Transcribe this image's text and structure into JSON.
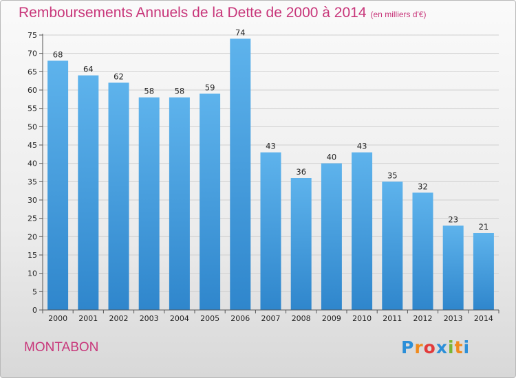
{
  "header": {
    "title": "Remboursements Annuels de la Dette de 2000 à 2014",
    "unit": "(en milliers d'€)"
  },
  "footer": {
    "city": "MONTABON",
    "logo": "Proxiti"
  },
  "colors": {
    "title": "#c8367a",
    "bar_top": "#5eb3ec",
    "bar_bottom": "#2f86cc",
    "grid": "#cfcfcf",
    "logo_letters": [
      "#2b8fd8",
      "#f08a1c",
      "#e23b3b",
      "#2b8fd8",
      "#7ab534",
      "#f08a1c",
      "#2b8fd8"
    ]
  },
  "chart_data": {
    "type": "bar",
    "title": "Remboursements Annuels de la Dette de 2000 à 2014",
    "subtitle": "(en milliers d'€)",
    "xlabel": "",
    "ylabel": "",
    "categories": [
      "2000",
      "2001",
      "2002",
      "2003",
      "2004",
      "2005",
      "2006",
      "2007",
      "2008",
      "2009",
      "2010",
      "2011",
      "2012",
      "2013",
      "2014"
    ],
    "values": [
      68,
      64,
      62,
      58,
      58,
      59,
      74,
      43,
      36,
      40,
      43,
      35,
      32,
      23,
      21
    ],
    "ylim": [
      0,
      75
    ],
    "yticks": [
      0,
      5,
      10,
      15,
      20,
      25,
      30,
      35,
      40,
      45,
      50,
      55,
      60,
      65,
      70,
      75
    ],
    "grid": true,
    "data_labels": true
  }
}
